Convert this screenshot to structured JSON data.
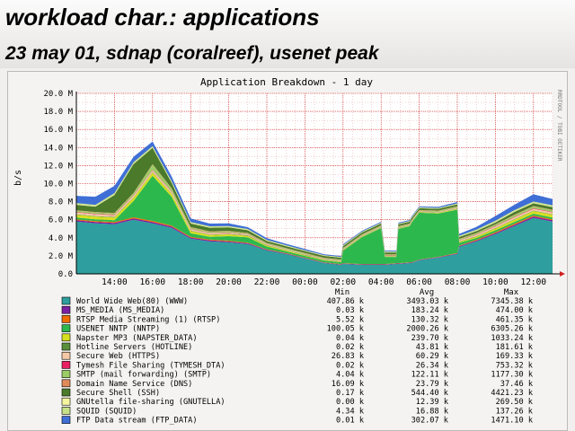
{
  "slide": {
    "title": "workload char.: applications",
    "subtitle": "23 may 01, sdnap (coralreef), usenet peak"
  },
  "chart_data": {
    "type": "area",
    "title": "Application Breakdown - 1 day",
    "ylabel": "b/s",
    "side_label": "RRDTOOL / TOBI OETIKER",
    "ylim": [
      0,
      20000000
    ],
    "y_ticks": [
      {
        "v": 0,
        "label": "0.0"
      },
      {
        "v": 2000000,
        "label": "2.0 M"
      },
      {
        "v": 4000000,
        "label": "4.0 M"
      },
      {
        "v": 6000000,
        "label": "6.0 M"
      },
      {
        "v": 8000000,
        "label": "8.0 M"
      },
      {
        "v": 10000000,
        "label": "10.0 M"
      },
      {
        "v": 12000000,
        "label": "12.0 M"
      },
      {
        "v": 14000000,
        "label": "14.0 M"
      },
      {
        "v": 16000000,
        "label": "16.0 M"
      },
      {
        "v": 18000000,
        "label": "18.0 M"
      },
      {
        "v": 20000000,
        "label": "20.0 M"
      }
    ],
    "x_range": [
      12,
      37
    ],
    "x_ticks": [
      {
        "h": 14,
        "label": "14:00"
      },
      {
        "h": 16,
        "label": "16:00"
      },
      {
        "h": 18,
        "label": "18:00"
      },
      {
        "h": 20,
        "label": "20:00"
      },
      {
        "h": 22,
        "label": "22:00"
      },
      {
        "h": 24,
        "label": "00:00"
      },
      {
        "h": 26,
        "label": "02:00"
      },
      {
        "h": 28,
        "label": "04:00"
      },
      {
        "h": 30,
        "label": "06:00"
      },
      {
        "h": 32,
        "label": "08:00"
      },
      {
        "h": 34,
        "label": "10:00"
      },
      {
        "h": 36,
        "label": "12:00"
      }
    ],
    "x": [
      12.0,
      13.0,
      14.0,
      15.0,
      16.0,
      17.0,
      18.0,
      19.0,
      20.0,
      21.0,
      22.0,
      23.0,
      24.0,
      25.0,
      25.9,
      26.0,
      27.0,
      28.0,
      28.2,
      28.8,
      28.9,
      29.5,
      29.6,
      30.0,
      31.0,
      32.0,
      32.1,
      33.0,
      34.0,
      35.0,
      36.0,
      37.0
    ],
    "series": [
      {
        "name": "World Wide Web(80) (WWW)",
        "color": "#2e9e9e",
        "values": [
          5.8,
          5.6,
          5.5,
          6.0,
          5.6,
          5.1,
          3.9,
          3.6,
          3.5,
          3.3,
          2.6,
          2.2,
          1.7,
          1.2,
          1.0,
          1.1,
          1.0,
          1.0,
          1.0,
          1.1,
          1.1,
          1.2,
          1.2,
          1.5,
          1.8,
          2.2,
          3.0,
          3.6,
          4.4,
          5.3,
          6.2,
          5.8
        ]
      },
      {
        "name": "MS_MEDIA (MS_MEDIA)",
        "color": "#7b1fa2",
        "values": [
          0.15,
          0.15,
          0.15,
          0.15,
          0.15,
          0.15,
          0.12,
          0.12,
          0.1,
          0.1,
          0.08,
          0.06,
          0.05,
          0.05,
          0.05,
          0.05,
          0.05,
          0.05,
          0.05,
          0.05,
          0.05,
          0.05,
          0.05,
          0.05,
          0.05,
          0.06,
          0.08,
          0.1,
          0.12,
          0.14,
          0.15,
          0.15
        ]
      },
      {
        "name": "RTSP Media Streaming (1) (RTSP)",
        "color": "#ef6c00",
        "values": [
          0.1,
          0.1,
          0.1,
          0.12,
          0.12,
          0.1,
          0.08,
          0.08,
          0.08,
          0.06,
          0.05,
          0.05,
          0.04,
          0.03,
          0.03,
          0.03,
          0.03,
          0.03,
          0.03,
          0.03,
          0.03,
          0.03,
          0.03,
          0.03,
          0.04,
          0.05,
          0.06,
          0.08,
          0.1,
          0.12,
          0.12,
          0.1
        ]
      },
      {
        "name": "USENET NNTP (NNTP)",
        "color": "#2db84d",
        "values": [
          0.2,
          0.2,
          0.2,
          1.8,
          5.0,
          3.2,
          0.4,
          0.3,
          0.5,
          0.6,
          0.3,
          0.2,
          0.2,
          0.2,
          0.2,
          1.4,
          3.0,
          4.0,
          0.8,
          0.7,
          3.8,
          4.0,
          4.4,
          5.2,
          4.8,
          4.8,
          0.3,
          0.2,
          0.2,
          0.2,
          0.2,
          0.2
        ]
      },
      {
        "name": "Napster MP3 (NAPSTER_DATA)",
        "color": "#d6e020",
        "values": [
          0.3,
          0.3,
          0.3,
          0.35,
          0.35,
          0.3,
          0.25,
          0.2,
          0.2,
          0.15,
          0.12,
          0.1,
          0.08,
          0.06,
          0.06,
          0.06,
          0.06,
          0.05,
          0.05,
          0.05,
          0.05,
          0.05,
          0.05,
          0.05,
          0.06,
          0.08,
          0.1,
          0.15,
          0.2,
          0.25,
          0.3,
          0.3
        ]
      },
      {
        "name": "Hotline Servers (HOTLINE)",
        "color": "#5a8f3c",
        "values": [
          0.05,
          0.05,
          0.05,
          0.05,
          0.05,
          0.05,
          0.05,
          0.05,
          0.05,
          0.05,
          0.05,
          0.04,
          0.04,
          0.04,
          0.04,
          0.04,
          0.04,
          0.04,
          0.04,
          0.04,
          0.04,
          0.04,
          0.04,
          0.04,
          0.04,
          0.04,
          0.05,
          0.05,
          0.05,
          0.05,
          0.05,
          0.05
        ]
      },
      {
        "name": "Secure Web (HTTPS)",
        "color": "#f5c9a8",
        "values": [
          0.2,
          0.2,
          0.2,
          0.2,
          0.2,
          0.2,
          0.15,
          0.15,
          0.12,
          0.1,
          0.08,
          0.06,
          0.05,
          0.05,
          0.05,
          0.05,
          0.05,
          0.05,
          0.05,
          0.05,
          0.05,
          0.05,
          0.05,
          0.05,
          0.06,
          0.08,
          0.1,
          0.15,
          0.18,
          0.2,
          0.2,
          0.2
        ]
      },
      {
        "name": "Tymesh File Sharing (TYMESH_DTA)",
        "color": "#e91e63",
        "values": [
          0.05,
          0.05,
          0.05,
          0.05,
          0.05,
          0.05,
          0.04,
          0.04,
          0.04,
          0.03,
          0.03,
          0.02,
          0.02,
          0.02,
          0.02,
          0.02,
          0.02,
          0.02,
          0.02,
          0.02,
          0.02,
          0.02,
          0.02,
          0.02,
          0.02,
          0.03,
          0.03,
          0.04,
          0.05,
          0.05,
          0.05,
          0.05
        ]
      },
      {
        "name": "SMTP (mail forwarding) (SMTP)",
        "color": "#9ccc65",
        "values": [
          0.15,
          0.15,
          0.15,
          0.2,
          0.6,
          0.3,
          0.15,
          0.12,
          0.12,
          0.1,
          0.1,
          0.1,
          0.1,
          0.1,
          0.1,
          0.1,
          0.1,
          0.1,
          0.1,
          0.1,
          0.1,
          0.1,
          0.1,
          0.1,
          0.1,
          0.12,
          0.12,
          0.12,
          0.15,
          0.2,
          0.2,
          0.2
        ]
      },
      {
        "name": "Domain Name Service (DNS)",
        "color": "#e08a5a",
        "values": [
          0.05,
          0.05,
          0.05,
          0.05,
          0.05,
          0.05,
          0.05,
          0.05,
          0.05,
          0.05,
          0.04,
          0.04,
          0.04,
          0.04,
          0.04,
          0.04,
          0.04,
          0.04,
          0.04,
          0.04,
          0.04,
          0.04,
          0.04,
          0.04,
          0.04,
          0.04,
          0.05,
          0.05,
          0.05,
          0.05,
          0.05,
          0.05
        ]
      },
      {
        "name": "Secure Shell (SSH)",
        "color": "#4a7a2a",
        "values": [
          0.6,
          0.6,
          2.0,
          3.2,
          1.8,
          0.6,
          0.4,
          0.4,
          0.4,
          0.3,
          0.2,
          0.2,
          0.2,
          0.2,
          0.2,
          0.2,
          0.2,
          0.2,
          0.2,
          0.2,
          0.2,
          0.2,
          0.2,
          0.2,
          0.2,
          0.2,
          0.2,
          0.2,
          0.2,
          0.3,
          0.3,
          0.3
        ]
      },
      {
        "name": "GNUtella file-sharing (GNUTELLA)",
        "color": "#f5f5a0",
        "values": [
          0.05,
          0.05,
          0.05,
          0.05,
          0.05,
          0.05,
          0.04,
          0.04,
          0.04,
          0.04,
          0.03,
          0.03,
          0.03,
          0.03,
          0.03,
          0.03,
          0.03,
          0.03,
          0.03,
          0.03,
          0.03,
          0.03,
          0.03,
          0.03,
          0.03,
          0.03,
          0.04,
          0.04,
          0.05,
          0.05,
          0.05,
          0.05
        ]
      },
      {
        "name": "SQUID (SQUID)",
        "color": "#c6e08a",
        "values": [
          0.15,
          0.15,
          0.15,
          0.15,
          0.15,
          0.15,
          0.12,
          0.12,
          0.1,
          0.1,
          0.08,
          0.08,
          0.06,
          0.06,
          0.06,
          0.06,
          0.06,
          0.06,
          0.06,
          0.06,
          0.06,
          0.06,
          0.06,
          0.06,
          0.06,
          0.08,
          0.1,
          0.12,
          0.15,
          0.15,
          0.15,
          0.15
        ]
      },
      {
        "name": "FTP Data stream (FTP_DATA)",
        "color": "#3f6fd6",
        "values": [
          0.8,
          0.9,
          0.8,
          0.6,
          0.5,
          0.5,
          0.4,
          0.3,
          0.3,
          0.2,
          0.2,
          0.15,
          0.15,
          0.1,
          0.1,
          0.1,
          0.1,
          0.1,
          0.1,
          0.1,
          0.1,
          0.1,
          0.1,
          0.1,
          0.12,
          0.15,
          0.2,
          0.3,
          0.5,
          0.6,
          0.8,
          0.7
        ]
      }
    ],
    "value_scale": 1000000,
    "legend": {
      "headers": [
        "Min",
        "Avg",
        "Max"
      ],
      "rows": [
        [
          "407.86 k",
          "3493.03 k",
          "7345.38 k"
        ],
        [
          "0.03 k",
          "183.24 k",
          "474.00 k"
        ],
        [
          "5.52 k",
          "130.32 k",
          "461.35 k"
        ],
        [
          "100.05 k",
          "2000.26 k",
          "6305.26 k"
        ],
        [
          "0.04 k",
          "239.70 k",
          "1033.24 k"
        ],
        [
          "0.02 k",
          "43.81 k",
          "181.61 k"
        ],
        [
          "26.83 k",
          "60.29 k",
          "169.33 k"
        ],
        [
          "0.02 k",
          "26.34 k",
          "753.32 k"
        ],
        [
          "4.04 k",
          "122.11 k",
          "1177.30 k"
        ],
        [
          "16.09 k",
          "23.79 k",
          "37.46 k"
        ],
        [
          "0.17 k",
          "544.40 k",
          "4421.23 k"
        ],
        [
          "0.00 k",
          "12.39 k",
          "269.50 k"
        ],
        [
          "4.34 k",
          "16.88 k",
          "137.26 k"
        ],
        [
          "0.01 k",
          "302.07 k",
          "1471.10 k"
        ]
      ]
    }
  }
}
